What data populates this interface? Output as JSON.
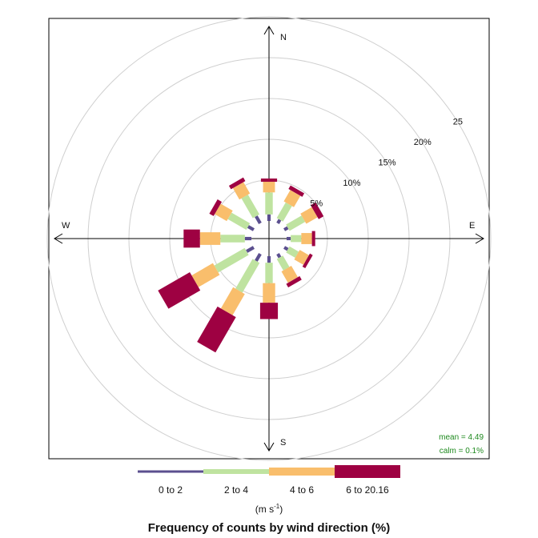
{
  "chart_data": {
    "type": "windrose",
    "title": "Frequency of counts by wind direction (%)",
    "units_label": "(m s",
    "units_exponent": "-1",
    "units_close": ")",
    "directions": [
      0,
      30,
      60,
      90,
      120,
      150,
      180,
      210,
      240,
      270,
      300,
      330
    ],
    "compass": {
      "N": "N",
      "E": "E",
      "S": "S",
      "W": "W"
    },
    "rings": [
      {
        "value": 5,
        "label": "5%"
      },
      {
        "value": 10,
        "label": "10%"
      },
      {
        "value": 15,
        "label": "15%"
      },
      {
        "value": 20,
        "label": "20%"
      },
      {
        "value": 25,
        "label": "25"
      }
    ],
    "rlim": [
      0,
      25
    ],
    "series": [
      {
        "name": "0 to 2",
        "color": "#5b4f8f",
        "values": [
          0.8,
          0.5,
          0.5,
          0.5,
          0.5,
          0.5,
          0.8,
          1.0,
          1.0,
          0.8,
          0.8,
          1.0
        ]
      },
      {
        "name": "2 to 4",
        "color": "#bfe3a0",
        "values": [
          2.7,
          2.2,
          2.2,
          1.3,
          1.3,
          1.6,
          2.5,
          4.2,
          4.3,
          3.0,
          2.6,
          2.8
        ]
      },
      {
        "name": "4 to 6",
        "color": "#f9be6c",
        "values": [
          1.3,
          1.6,
          1.6,
          1.3,
          1.3,
          1.6,
          2.4,
          3.0,
          3.0,
          2.5,
          1.7,
          1.6
        ]
      },
      {
        "name": "6 to 20.16",
        "color": "#9e0142",
        "values": [
          0.4,
          0.5,
          0.7,
          0.4,
          0.4,
          0.5,
          2.0,
          5.0,
          4.5,
          2.0,
          0.6,
          0.5
        ]
      }
    ],
    "stats": {
      "mean": "mean = 4.49",
      "calm": "calm = 0.1%"
    }
  }
}
